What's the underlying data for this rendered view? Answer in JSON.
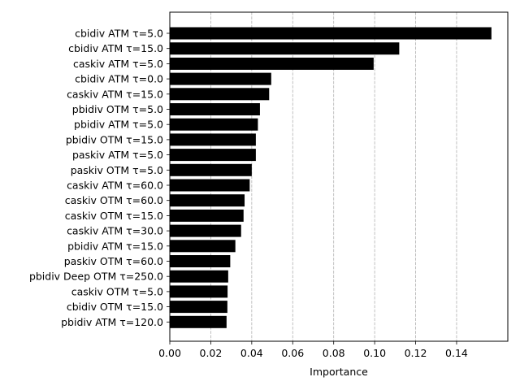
{
  "chart_data": {
    "type": "bar",
    "orientation": "horizontal",
    "xlabel": "Importance",
    "ylabel": "",
    "title": "",
    "xlim": [
      0,
      0.165
    ],
    "xticks": [
      "0.00",
      "0.02",
      "0.04",
      "0.06",
      "0.08",
      "0.10",
      "0.12",
      "0.14"
    ],
    "grid": "x-dashed",
    "bar_color": "#000000",
    "grid_color": "#b0b0b0",
    "categories": [
      "cbidiv ATM τ=5.0",
      "cbidiv ATM τ=15.0",
      "caskiv ATM τ=5.0",
      "cbidiv ATM τ=0.0",
      "caskiv ATM τ=15.0",
      "pbidiv OTM τ=5.0",
      "pbidiv ATM τ=5.0",
      "pbidiv OTM τ=15.0",
      "paskiv ATM τ=5.0",
      "paskiv OTM τ=5.0",
      "caskiv ATM τ=60.0",
      "caskiv OTM τ=60.0",
      "caskiv OTM τ=15.0",
      "caskiv ATM τ=30.0",
      "pbidiv ATM τ=15.0",
      "paskiv OTM τ=60.0",
      "pbidiv Deep OTM τ=250.0",
      "caskiv OTM τ=5.0",
      "cbidiv OTM τ=15.0",
      "pbidiv ATM τ=120.0"
    ],
    "values": [
      0.157,
      0.112,
      0.0995,
      0.0495,
      0.0485,
      0.044,
      0.043,
      0.042,
      0.042,
      0.04,
      0.039,
      0.0365,
      0.036,
      0.0348,
      0.032,
      0.0295,
      0.0285,
      0.0282,
      0.0281,
      0.0277
    ]
  }
}
